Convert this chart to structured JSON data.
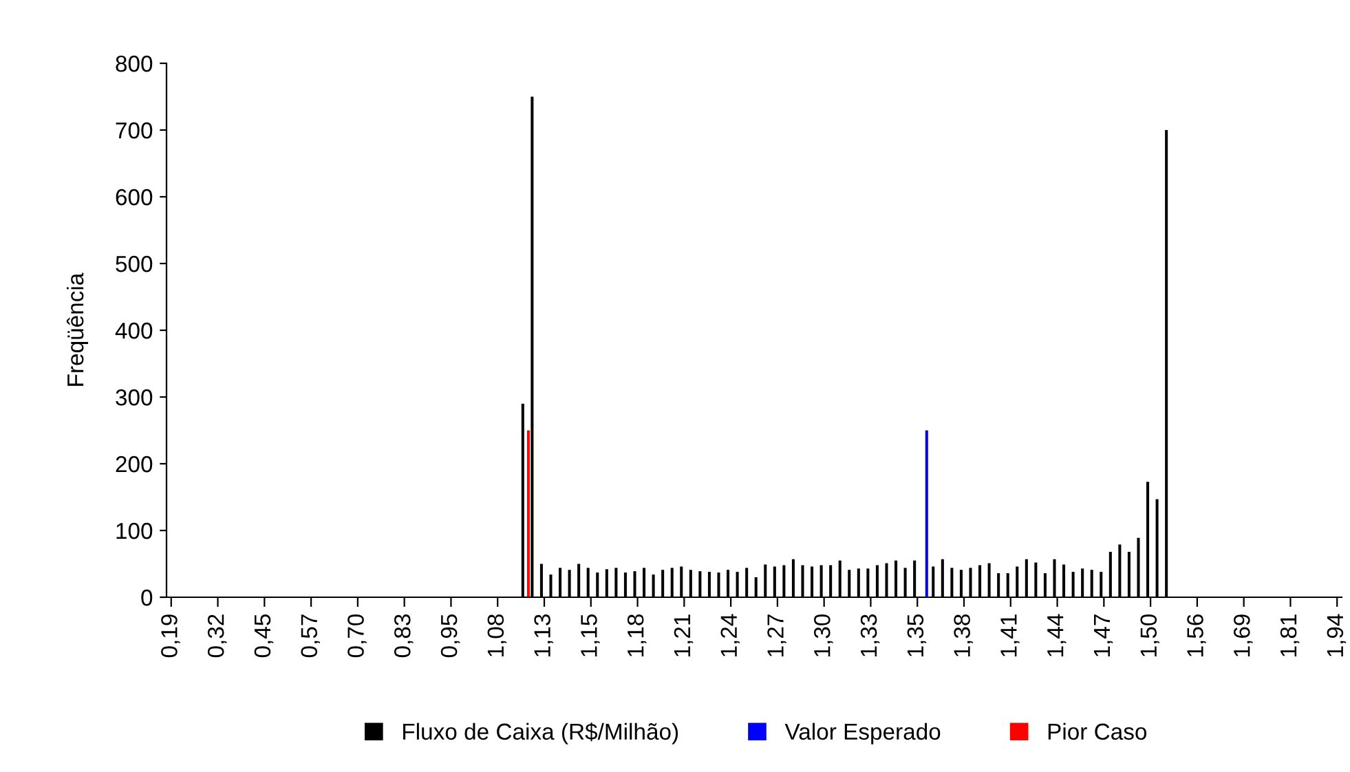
{
  "chart_data": {
    "type": "bar",
    "ylabel": "Freqüência",
    "categories": [
      "0,19",
      null,
      null,
      null,
      null,
      "0,32",
      null,
      null,
      null,
      null,
      "0,45",
      null,
      null,
      null,
      null,
      "0,57",
      null,
      null,
      null,
      null,
      "0,70",
      null,
      null,
      null,
      null,
      "0,83",
      null,
      null,
      null,
      null,
      "0,95",
      null,
      null,
      null,
      null,
      "1,08",
      null,
      null,
      null,
      null,
      "1,13",
      null,
      null,
      null,
      null,
      "1,15",
      null,
      null,
      null,
      null,
      "1,18",
      null,
      null,
      null,
      null,
      "1,21",
      null,
      null,
      null,
      null,
      "1,24",
      null,
      null,
      null,
      null,
      "1,27",
      null,
      null,
      null,
      null,
      "1,30",
      null,
      null,
      null,
      null,
      "1,33",
      null,
      null,
      null,
      null,
      "1,35",
      null,
      null,
      null,
      null,
      "1,38",
      null,
      null,
      null,
      null,
      "1,41",
      null,
      null,
      null,
      null,
      "1,44",
      null,
      null,
      null,
      null,
      "1,47",
      null,
      null,
      null,
      null,
      "1,50",
      null,
      null,
      null,
      null,
      "1,56",
      null,
      null,
      null,
      null,
      "1,69",
      null,
      null,
      null,
      null,
      "1,81",
      null,
      null,
      null,
      null,
      "1,94"
    ],
    "series": [
      {
        "name": "Fluxo de Caixa (R$/Milhão)",
        "color": "#000000",
        "values": [
          0,
          0,
          0,
          0,
          0,
          0,
          0,
          0,
          0,
          0,
          0,
          0,
          0,
          0,
          0,
          0,
          0,
          0,
          0,
          0,
          0,
          0,
          0,
          0,
          0,
          0,
          0,
          0,
          0,
          0,
          0,
          0,
          0,
          0,
          0,
          0,
          0,
          0,
          290,
          750,
          50,
          34,
          44,
          41,
          50,
          44,
          37,
          42,
          44,
          37,
          39,
          44,
          34,
          41,
          44,
          46,
          41,
          39,
          38,
          37,
          41,
          38,
          44,
          30,
          49,
          46,
          48,
          57,
          48,
          46,
          48,
          48,
          55,
          41,
          43,
          43,
          48,
          51,
          55,
          44,
          55,
          null,
          46,
          57,
          44,
          41,
          44,
          48,
          51,
          36,
          36,
          46,
          57,
          52,
          36,
          57,
          49,
          38,
          43,
          41,
          38,
          68,
          79,
          68,
          89,
          173,
          147,
          700,
          0,
          0,
          0,
          0,
          0,
          0,
          0,
          0,
          0,
          0,
          0,
          0,
          0,
          0,
          0,
          0,
          0,
          0
        ]
      },
      {
        "name": "Valor Esperado",
        "color": "#0000ff",
        "values": [
          null,
          null,
          null,
          null,
          null,
          null,
          null,
          null,
          null,
          null,
          null,
          null,
          null,
          null,
          null,
          null,
          null,
          null,
          null,
          null,
          null,
          null,
          null,
          null,
          null,
          null,
          null,
          null,
          null,
          null,
          null,
          null,
          null,
          null,
          null,
          null,
          null,
          null,
          null,
          null,
          null,
          null,
          null,
          null,
          null,
          null,
          null,
          null,
          null,
          null,
          null,
          null,
          null,
          null,
          null,
          null,
          null,
          null,
          null,
          null,
          null,
          null,
          null,
          null,
          null,
          null,
          null,
          null,
          null,
          null,
          null,
          null,
          null,
          null,
          null,
          null,
          null,
          null,
          null,
          null,
          null,
          250,
          null,
          null,
          null,
          null,
          null,
          null,
          null,
          null,
          null,
          null,
          null,
          null,
          null,
          null,
          null,
          null,
          null,
          null,
          null,
          null,
          null,
          null,
          null,
          null,
          null,
          null,
          null,
          null,
          null,
          null,
          null,
          null,
          null,
          null,
          null,
          null,
          null,
          null,
          null,
          null,
          null,
          null,
          null,
          null
        ]
      },
      {
        "name": "Pior Caso",
        "color": "#ff0000",
        "values": [
          null,
          null,
          null,
          null,
          null,
          null,
          null,
          null,
          null,
          null,
          null,
          null,
          null,
          null,
          null,
          null,
          null,
          null,
          null,
          null,
          null,
          null,
          null,
          null,
          null,
          null,
          null,
          null,
          null,
          null,
          null,
          null,
          null,
          null,
          null,
          null,
          null,
          null,
          250,
          null,
          null,
          null,
          null,
          null,
          null,
          null,
          null,
          null,
          null,
          null,
          null,
          null,
          null,
          null,
          null,
          null,
          null,
          null,
          null,
          null,
          null,
          null,
          null,
          null,
          null,
          null,
          null,
          null,
          null,
          null,
          null,
          null,
          null,
          null,
          null,
          null,
          null,
          null,
          null,
          null,
          null,
          null,
          null,
          null,
          null,
          null,
          null,
          null,
          null,
          null,
          null,
          null,
          null,
          null,
          null,
          null,
          null,
          null,
          null,
          null,
          null,
          null,
          null,
          null,
          null,
          null,
          null,
          null,
          null,
          null,
          null,
          null,
          null,
          null,
          null,
          null,
          null,
          null,
          null,
          null,
          null,
          null,
          null,
          null,
          null,
          null
        ]
      }
    ],
    "ylim": [
      0,
      800
    ],
    "yticks": [
      0,
      100,
      200,
      300,
      400,
      500,
      600,
      700,
      800
    ],
    "grid": false,
    "legend": "bottom"
  }
}
